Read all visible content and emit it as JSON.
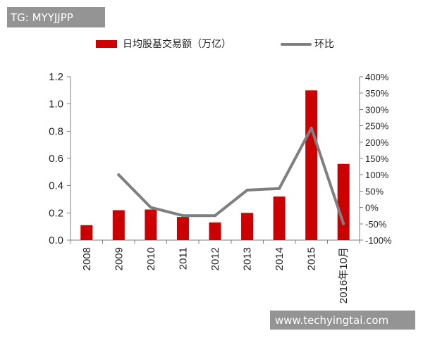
{
  "watermark_top": "TG: MYYJJPP",
  "watermark_bottom": "www.techyingtai.com",
  "chart_data": {
    "type": "bar",
    "categories": [
      "2008",
      "2009",
      "2010",
      "2011",
      "2012",
      "2013",
      "2014",
      "2015",
      "2016年10月"
    ],
    "series": [
      {
        "name": "日均股基交易额（万亿）",
        "type": "bar",
        "axis": "left",
        "color": "#cc0000",
        "values": [
          0.11,
          0.22,
          0.225,
          0.17,
          0.13,
          0.2,
          0.32,
          1.1,
          0.56
        ]
      },
      {
        "name": "环比",
        "type": "line",
        "axis": "right",
        "color": "#7f7f7f",
        "values": [
          null,
          100,
          0,
          -25,
          -25,
          53,
          58,
          243,
          -50
        ]
      }
    ],
    "y_left": {
      "ylim": [
        0,
        1.2
      ],
      "ticks": [
        "0.0",
        "0.2",
        "0.4",
        "0.6",
        "0.8",
        "1.0",
        "1.2"
      ]
    },
    "y_right": {
      "ylim": [
        -100,
        400
      ],
      "ticks": [
        "-100%",
        "-50%",
        "0%",
        "50%",
        "100%",
        "150%",
        "200%",
        "250%",
        "300%",
        "350%",
        "400%"
      ]
    },
    "grid": false,
    "legend_position": "top"
  }
}
